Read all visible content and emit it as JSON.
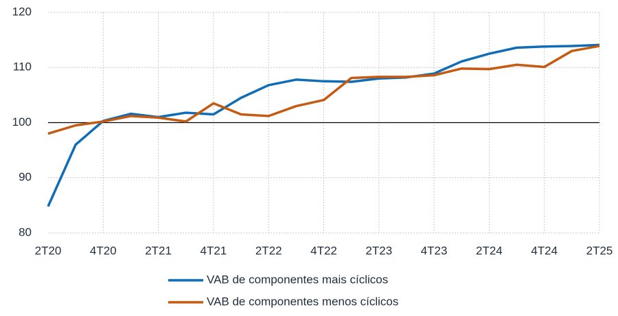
{
  "chart_data": {
    "type": "line",
    "categories": [
      "2T20",
      null,
      "4T20",
      null,
      "2T21",
      null,
      "4T21",
      null,
      "2T22",
      null,
      "4T22",
      null,
      "2T23",
      null,
      "4T23",
      null,
      "2T24",
      null,
      "4T24",
      null,
      "2T25"
    ],
    "series": [
      {
        "name": "VAB de componentes mais cíclicos",
        "color": "#0f6cb6",
        "values": [
          84.8,
          96.0,
          100.3,
          101.6,
          101.0,
          101.8,
          101.5,
          104.5,
          106.8,
          107.8,
          107.5,
          107.4,
          108.0,
          108.2,
          108.9,
          111.1,
          112.5,
          113.6,
          113.8,
          113.9,
          114.1
        ]
      },
      {
        "name": "VAB de componentes menos cíclicos",
        "color": "#c55a11",
        "values": [
          98.0,
          99.5,
          100.2,
          101.2,
          100.9,
          100.2,
          103.5,
          101.5,
          101.2,
          103.0,
          104.1,
          108.1,
          108.3,
          108.3,
          108.6,
          109.8,
          109.7,
          110.5,
          110.1,
          113.0,
          113.9
        ]
      }
    ],
    "ylim": [
      80,
      120
    ],
    "yticks": [
      80,
      90,
      100,
      110,
      120
    ],
    "baseline": 100,
    "grid": true,
    "legend": "bottom"
  }
}
